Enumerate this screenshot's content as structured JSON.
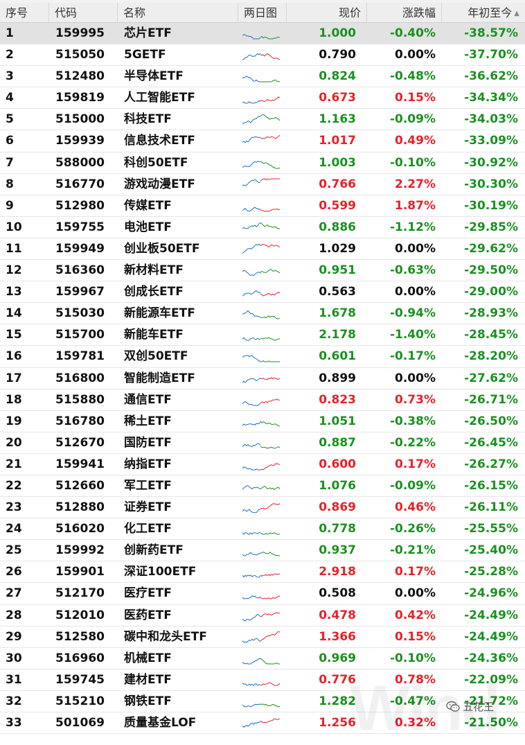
{
  "columns": {
    "seq": "序号",
    "code": "代码",
    "name": "名称",
    "chart": "两日图",
    "price": "现价",
    "change": "涨跌幅",
    "ytd": "年初至今"
  },
  "sort": {
    "column": "ytd",
    "direction": "ascending"
  },
  "colors": {
    "up": "#e8212a",
    "down": "#1a9120",
    "flat": "#111111",
    "spark_first_day": "#1f6fc0"
  },
  "rows": [
    {
      "seq": "1",
      "code": "159995",
      "name": "芯片ETF",
      "price": "1.000",
      "change": "-0.40%",
      "ytd": "-38.57%",
      "dir": "down"
    },
    {
      "seq": "2",
      "code": "515050",
      "name": "5GETF",
      "price": "0.790",
      "change": "0.00%",
      "ytd": "-37.70%",
      "dir": "flat"
    },
    {
      "seq": "3",
      "code": "512480",
      "name": "半导体ETF",
      "price": "0.824",
      "change": "-0.48%",
      "ytd": "-36.62%",
      "dir": "down"
    },
    {
      "seq": "4",
      "code": "159819",
      "name": "人工智能ETF",
      "price": "0.673",
      "change": "0.15%",
      "ytd": "-34.34%",
      "dir": "up"
    },
    {
      "seq": "5",
      "code": "515000",
      "name": "科技ETF",
      "price": "1.163",
      "change": "-0.09%",
      "ytd": "-34.03%",
      "dir": "down"
    },
    {
      "seq": "6",
      "code": "159939",
      "name": "信息技术ETF",
      "price": "1.017",
      "change": "0.49%",
      "ytd": "-33.09%",
      "dir": "up"
    },
    {
      "seq": "7",
      "code": "588000",
      "name": "科创50ETF",
      "price": "1.003",
      "change": "-0.10%",
      "ytd": "-30.92%",
      "dir": "down"
    },
    {
      "seq": "8",
      "code": "516770",
      "name": "游戏动漫ETF",
      "price": "0.766",
      "change": "2.27%",
      "ytd": "-30.30%",
      "dir": "up"
    },
    {
      "seq": "9",
      "code": "512980",
      "name": "传媒ETF",
      "price": "0.599",
      "change": "1.87%",
      "ytd": "-30.19%",
      "dir": "up"
    },
    {
      "seq": "10",
      "code": "159755",
      "name": "电池ETF",
      "price": "0.886",
      "change": "-1.12%",
      "ytd": "-29.85%",
      "dir": "down"
    },
    {
      "seq": "11",
      "code": "159949",
      "name": "创业板50ETF",
      "price": "1.029",
      "change": "0.00%",
      "ytd": "-29.62%",
      "dir": "flat"
    },
    {
      "seq": "12",
      "code": "516360",
      "name": "新材料ETF",
      "price": "0.951",
      "change": "-0.63%",
      "ytd": "-29.50%",
      "dir": "down"
    },
    {
      "seq": "13",
      "code": "159967",
      "name": "创成长ETF",
      "price": "0.563",
      "change": "0.00%",
      "ytd": "-29.00%",
      "dir": "flat"
    },
    {
      "seq": "14",
      "code": "515030",
      "name": "新能源车ETF",
      "price": "1.678",
      "change": "-0.94%",
      "ytd": "-28.93%",
      "dir": "down"
    },
    {
      "seq": "15",
      "code": "515700",
      "name": "新能车ETF",
      "price": "2.178",
      "change": "-1.40%",
      "ytd": "-28.45%",
      "dir": "down"
    },
    {
      "seq": "16",
      "code": "159781",
      "name": "双创50ETF",
      "price": "0.601",
      "change": "-0.17%",
      "ytd": "-28.20%",
      "dir": "down"
    },
    {
      "seq": "17",
      "code": "516800",
      "name": "智能制造ETF",
      "price": "0.899",
      "change": "0.00%",
      "ytd": "-27.62%",
      "dir": "flat"
    },
    {
      "seq": "18",
      "code": "515880",
      "name": "通信ETF",
      "price": "0.823",
      "change": "0.73%",
      "ytd": "-26.71%",
      "dir": "up"
    },
    {
      "seq": "19",
      "code": "516780",
      "name": "稀土ETF",
      "price": "1.051",
      "change": "-0.38%",
      "ytd": "-26.50%",
      "dir": "down"
    },
    {
      "seq": "20",
      "code": "512670",
      "name": "国防ETF",
      "price": "0.887",
      "change": "-0.22%",
      "ytd": "-26.45%",
      "dir": "down"
    },
    {
      "seq": "21",
      "code": "159941",
      "name": "纳指ETF",
      "price": "0.600",
      "change": "0.17%",
      "ytd": "-26.27%",
      "dir": "up"
    },
    {
      "seq": "22",
      "code": "512660",
      "name": "军工ETF",
      "price": "1.076",
      "change": "-0.09%",
      "ytd": "-26.15%",
      "dir": "down"
    },
    {
      "seq": "23",
      "code": "512880",
      "name": "证券ETF",
      "price": "0.869",
      "change": "0.46%",
      "ytd": "-26.11%",
      "dir": "up"
    },
    {
      "seq": "24",
      "code": "516020",
      "name": "化工ETF",
      "price": "0.778",
      "change": "-0.26%",
      "ytd": "-25.55%",
      "dir": "down"
    },
    {
      "seq": "25",
      "code": "159992",
      "name": "创新药ETF",
      "price": "0.937",
      "change": "-0.21%",
      "ytd": "-25.40%",
      "dir": "down"
    },
    {
      "seq": "26",
      "code": "159901",
      "name": "深证100ETF",
      "price": "2.918",
      "change": "0.17%",
      "ytd": "-25.28%",
      "dir": "up"
    },
    {
      "seq": "27",
      "code": "512170",
      "name": "医疗ETF",
      "price": "0.508",
      "change": "0.00%",
      "ytd": "-24.96%",
      "dir": "flat"
    },
    {
      "seq": "28",
      "code": "512010",
      "name": "医药ETF",
      "price": "0.478",
      "change": "0.42%",
      "ytd": "-24.49%",
      "dir": "up"
    },
    {
      "seq": "29",
      "code": "512580",
      "name": "碳中和龙头ETF",
      "price": "1.366",
      "change": "0.15%",
      "ytd": "-24.49%",
      "dir": "up"
    },
    {
      "seq": "30",
      "code": "516960",
      "name": "机械ETF",
      "price": "0.969",
      "change": "-0.10%",
      "ytd": "-24.36%",
      "dir": "down"
    },
    {
      "seq": "31",
      "code": "159745",
      "name": "建材ETF",
      "price": "0.776",
      "change": "0.78%",
      "ytd": "-22.09%",
      "dir": "up"
    },
    {
      "seq": "32",
      "code": "515210",
      "name": "钢铁ETF",
      "price": "1.282",
      "change": "-0.47%",
      "ytd": "-21.72%",
      "dir": "down"
    },
    {
      "seq": "33",
      "code": "501069",
      "name": "质量基金LOF",
      "price": "1.256",
      "change": "0.32%",
      "ytd": "-21.50%",
      "dir": "up"
    }
  ],
  "watermark": {
    "brand": "Wind",
    "account": "五花王"
  }
}
